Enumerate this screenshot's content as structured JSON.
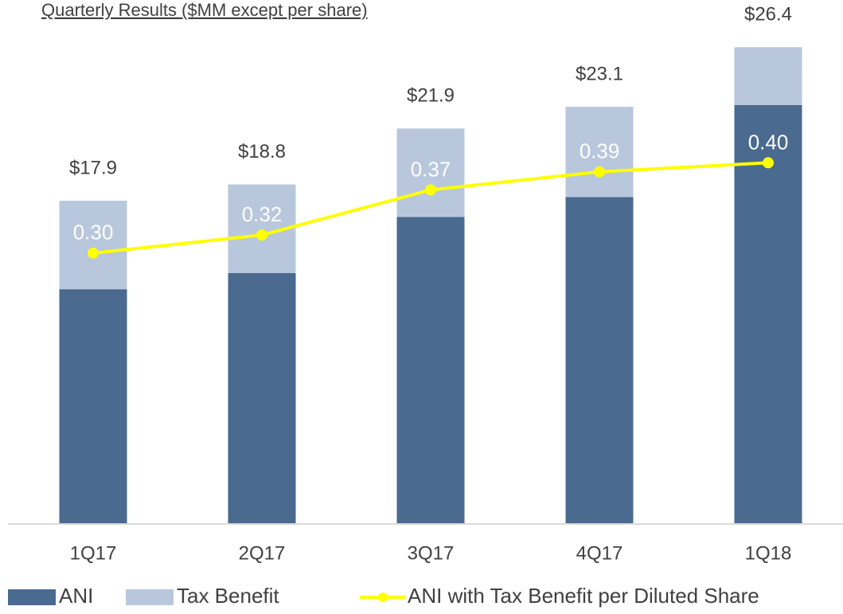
{
  "chart_data": {
    "type": "bar",
    "title": "Quarterly Results ($MM except per share)",
    "categories": [
      "1Q17",
      "2Q17",
      "3Q17",
      "4Q17",
      "1Q18"
    ],
    "series": [
      {
        "name": "ANI",
        "color": "#4a6a8f",
        "values": [
          13.0,
          13.9,
          17.0,
          18.1,
          23.2
        ]
      },
      {
        "name": "Tax Benefit",
        "color": "#b8c7dc",
        "values": [
          4.9,
          4.9,
          4.9,
          5.0,
          3.2
        ]
      },
      {
        "name": "ANI with Tax Benefit per Diluted Share",
        "color": "#ffff00",
        "axis": "y2",
        "type": "line",
        "values": [
          0.3,
          0.32,
          0.37,
          0.39,
          0.4
        ],
        "value_labels": [
          "0.30",
          "0.32",
          "0.37",
          "0.39",
          "0.40"
        ]
      }
    ],
    "totals": [
      17.9,
      18.8,
      21.9,
      23.1,
      26.4
    ],
    "total_labels": [
      "$17.9",
      "$18.8",
      "$21.9",
      "$23.1",
      "$26.4"
    ],
    "ylim": [
      0,
      28
    ],
    "y2lim": [
      0,
      0.56
    ],
    "stacked": true,
    "legend": "bottom"
  }
}
